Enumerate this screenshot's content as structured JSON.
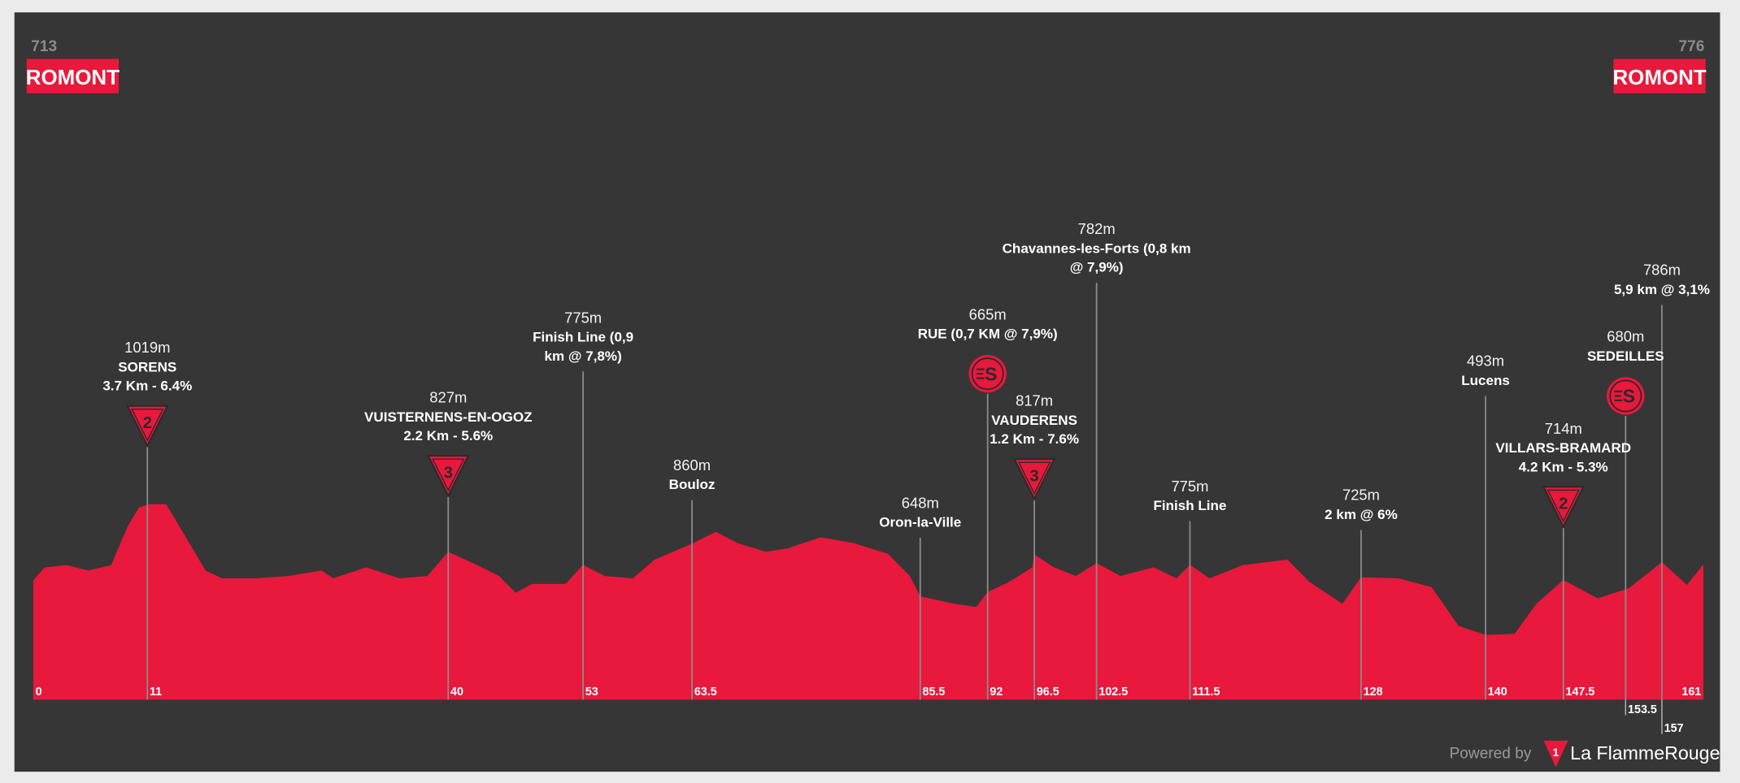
{
  "header": {
    "start": {
      "altitude": "713",
      "city": "ROMONT"
    },
    "finish": {
      "altitude": "776",
      "city": "ROMONT"
    }
  },
  "footer": {
    "powered_by": "Powered by",
    "brand": "La FlammeRouge",
    "brand_logo_text": "1"
  },
  "colors": {
    "profile": "#e8193c",
    "background": "#363636",
    "page": "#ebebeb",
    "marker_line": "#8c8c8c"
  },
  "chart_data": {
    "type": "area",
    "xlabel": "",
    "ylabel": "",
    "x_unit": "km",
    "y_unit": "m",
    "xlim": [
      0,
      161
    ],
    "grid": false,
    "profile": {
      "km": [
        0,
        1.1,
        3.2,
        5.3,
        7.5,
        9.1,
        10.2,
        11.2,
        12.8,
        14.4,
        16.6,
        18.2,
        21.4,
        24.6,
        27.8,
        28.9,
        32.1,
        35.3,
        38,
        40,
        42.8,
        44.9,
        46.5,
        48.1,
        51.3,
        53,
        55.1,
        57.8,
        59.9,
        63.5,
        65.8,
        67.9,
        70.6,
        72.7,
        75.9,
        79.1,
        82.4,
        84.5,
        85.5,
        88.8,
        90.9,
        92,
        94.1,
        96.3,
        96.5,
        98.4,
        100.5,
        102.5,
        104.8,
        108,
        110.2,
        111.5,
        113.4,
        116.6,
        120.9,
        123,
        126.2,
        128,
        131.6,
        134.8,
        137.4,
        140,
        142.8,
        144.9,
        147.5,
        150.8,
        153.8,
        157,
        159.4,
        161
      ],
      "elevation": [
        713,
        765,
        774,
        752,
        774,
        930,
        1006,
        1019,
        1019,
        908,
        752,
        721,
        721,
        730,
        752,
        721,
        765,
        721,
        730,
        827,
        774,
        730,
        663,
        698,
        698,
        775,
        730,
        721,
        796,
        860,
        908,
        863,
        828,
        841,
        886,
        863,
        819,
        730,
        648,
        618,
        605,
        665,
        707,
        765,
        817,
        765,
        730,
        782,
        730,
        765,
        721,
        775,
        721,
        774,
        796,
        707,
        618,
        725,
        721,
        685,
        529,
        493,
        497,
        618,
        714,
        640,
        680,
        786,
        694,
        776
      ]
    },
    "km_ticks": [
      "0",
      "11",
      "40",
      "53",
      "63.5",
      "85.5",
      "92",
      "96.5",
      "102.5",
      "111.5",
      "128",
      "140",
      "147.5",
      "161"
    ],
    "km_ticks_below": [
      "153.5",
      "157"
    ],
    "markers": [
      {
        "km": 11,
        "elevation": "1019m",
        "lines": [
          "SORENS",
          "3.7 Km - 6.4%"
        ],
        "icon": "kom-category-icon",
        "category": "2"
      },
      {
        "km": 40,
        "elevation": "827m",
        "lines": [
          "VUISTERNENS-EN-OGOZ",
          "2.2 Km - 5.6%"
        ],
        "icon": "kom-category-icon",
        "category": "3"
      },
      {
        "km": 53,
        "elevation": "775m",
        "lines": [
          "Finish Line (0,9",
          "km @ 7,8%)"
        ],
        "icon": "",
        "category": ""
      },
      {
        "km": 63.5,
        "elevation": "860m",
        "lines": [
          "Bouloz"
        ],
        "icon": "",
        "category": ""
      },
      {
        "km": 85.5,
        "elevation": "648m",
        "lines": [
          "Oron-la-Ville"
        ],
        "icon": "",
        "category": ""
      },
      {
        "km": 92,
        "elevation": "665m",
        "lines": [
          "RUE (0,7 KM @ 7,9%)"
        ],
        "icon": "sprint-icon",
        "category": "S"
      },
      {
        "km": 96.5,
        "elevation": "817m",
        "lines": [
          "VAUDERENS",
          "1.2 Km - 7.6%"
        ],
        "icon": "kom-category-icon",
        "category": "3"
      },
      {
        "km": 102.5,
        "elevation": "782m",
        "lines": [
          "Chavannes-les-Forts (0,8 km",
          "@ 7,9%)"
        ],
        "icon": "",
        "category": ""
      },
      {
        "km": 111.5,
        "elevation": "775m",
        "lines": [
          "Finish Line"
        ],
        "icon": "",
        "category": ""
      },
      {
        "km": 128,
        "elevation": "725m",
        "lines": [
          "2 km @ 6%"
        ],
        "icon": "",
        "category": ""
      },
      {
        "km": 140,
        "elevation": "493m",
        "lines": [
          "Lucens"
        ],
        "icon": "",
        "category": ""
      },
      {
        "km": 147.5,
        "elevation": "714m",
        "lines": [
          "VILLARS-BRAMARD",
          "4.2 Km - 5.3%"
        ],
        "icon": "kom-category-icon",
        "category": "2"
      },
      {
        "km": 153.5,
        "elevation": "680m",
        "lines": [
          "SEDEILLES"
        ],
        "icon": "sprint-icon",
        "category": "S"
      },
      {
        "km": 157,
        "elevation": "786m",
        "lines": [
          "5,9 km @ 3,1%"
        ],
        "icon": "",
        "category": ""
      }
    ]
  }
}
